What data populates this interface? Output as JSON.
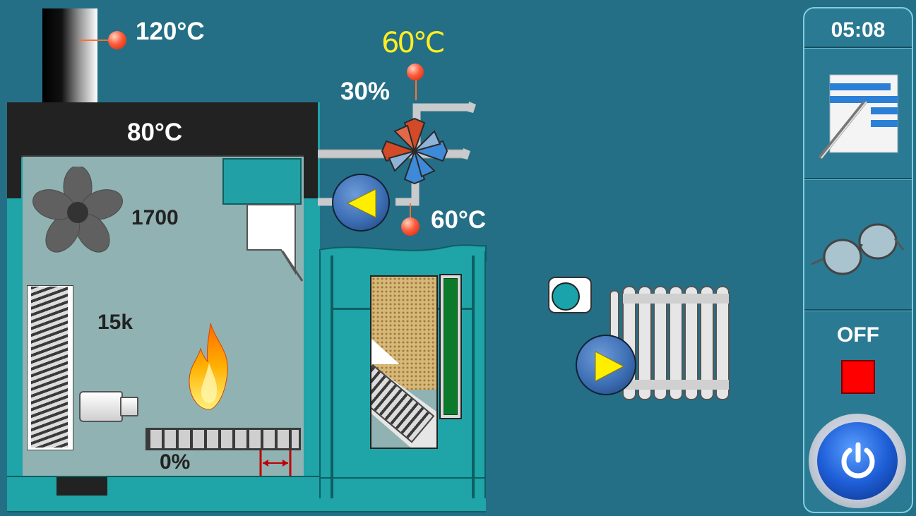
{
  "temps": {
    "chimney": "120°C",
    "boiler": "80°C",
    "valve_setpoint": "60°C",
    "return": "60°C"
  },
  "valve": {
    "opening": "30%"
  },
  "fan": {
    "speed": "1700"
  },
  "feeder": {
    "label": "15k"
  },
  "grate": {
    "percent": "0%"
  },
  "sidebar": {
    "time": "05:08",
    "status": "OFF",
    "icons": [
      "settings-list-icon",
      "glasses-icon",
      "stop-icon",
      "power-icon"
    ]
  },
  "colors": {
    "background": "#246f86",
    "boiler_body": "#8fb3b3",
    "teal": "#1ea0a4",
    "setpoint_text": "#ffee22",
    "stop_red": "#ff0000",
    "pump_blue": "#3d6fb5",
    "pump_arrow": "#ffee00"
  }
}
